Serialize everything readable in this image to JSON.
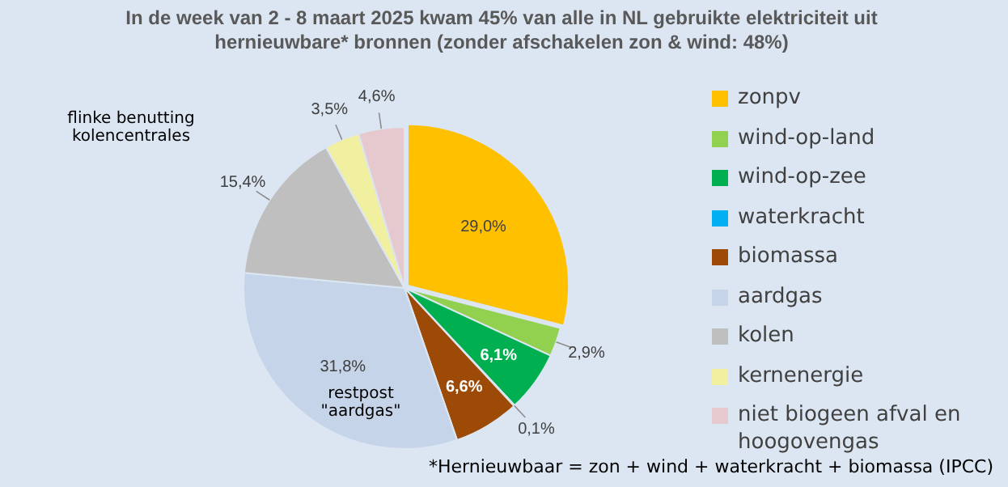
{
  "chart_data": {
    "type": "pie",
    "title": "In de week van 2 - 8 maart 2025 kwam 45% van alle in NL gebruikte elektriciteit uit hernieuwbare* bronnen  (zonder afschakelen zon & wind: 48%)",
    "categories": [
      "zonpv",
      "wind-op-land",
      "wind-op-zee",
      "waterkracht",
      "biomassa",
      "aardgas",
      "kolen",
      "kernenergie",
      "niet biogeen afval en hoogovengas"
    ],
    "values": [
      29.0,
      2.9,
      6.1,
      0.1,
      6.6,
      31.8,
      15.4,
      3.5,
      4.6
    ],
    "colors": [
      "#ffc000",
      "#92d050",
      "#00b050",
      "#00b0f0",
      "#9c4a06",
      "#c5d4e8",
      "#bfbfbf",
      "#f0f0a0",
      "#e6c9ce"
    ],
    "value_labels": [
      "29,0%",
      "2,9%",
      "6,1%",
      "0,1%",
      "6,6%",
      "31,8%",
      "15,4%",
      "3,5%",
      "4,6%"
    ],
    "legend": "right",
    "annotations": [
      "flinke benutting kolencentrales",
      "restpost \"aardgas\"",
      "*Hernieuwbaar = zon + wind + waterkracht + biomassa (IPCC)"
    ]
  }
}
